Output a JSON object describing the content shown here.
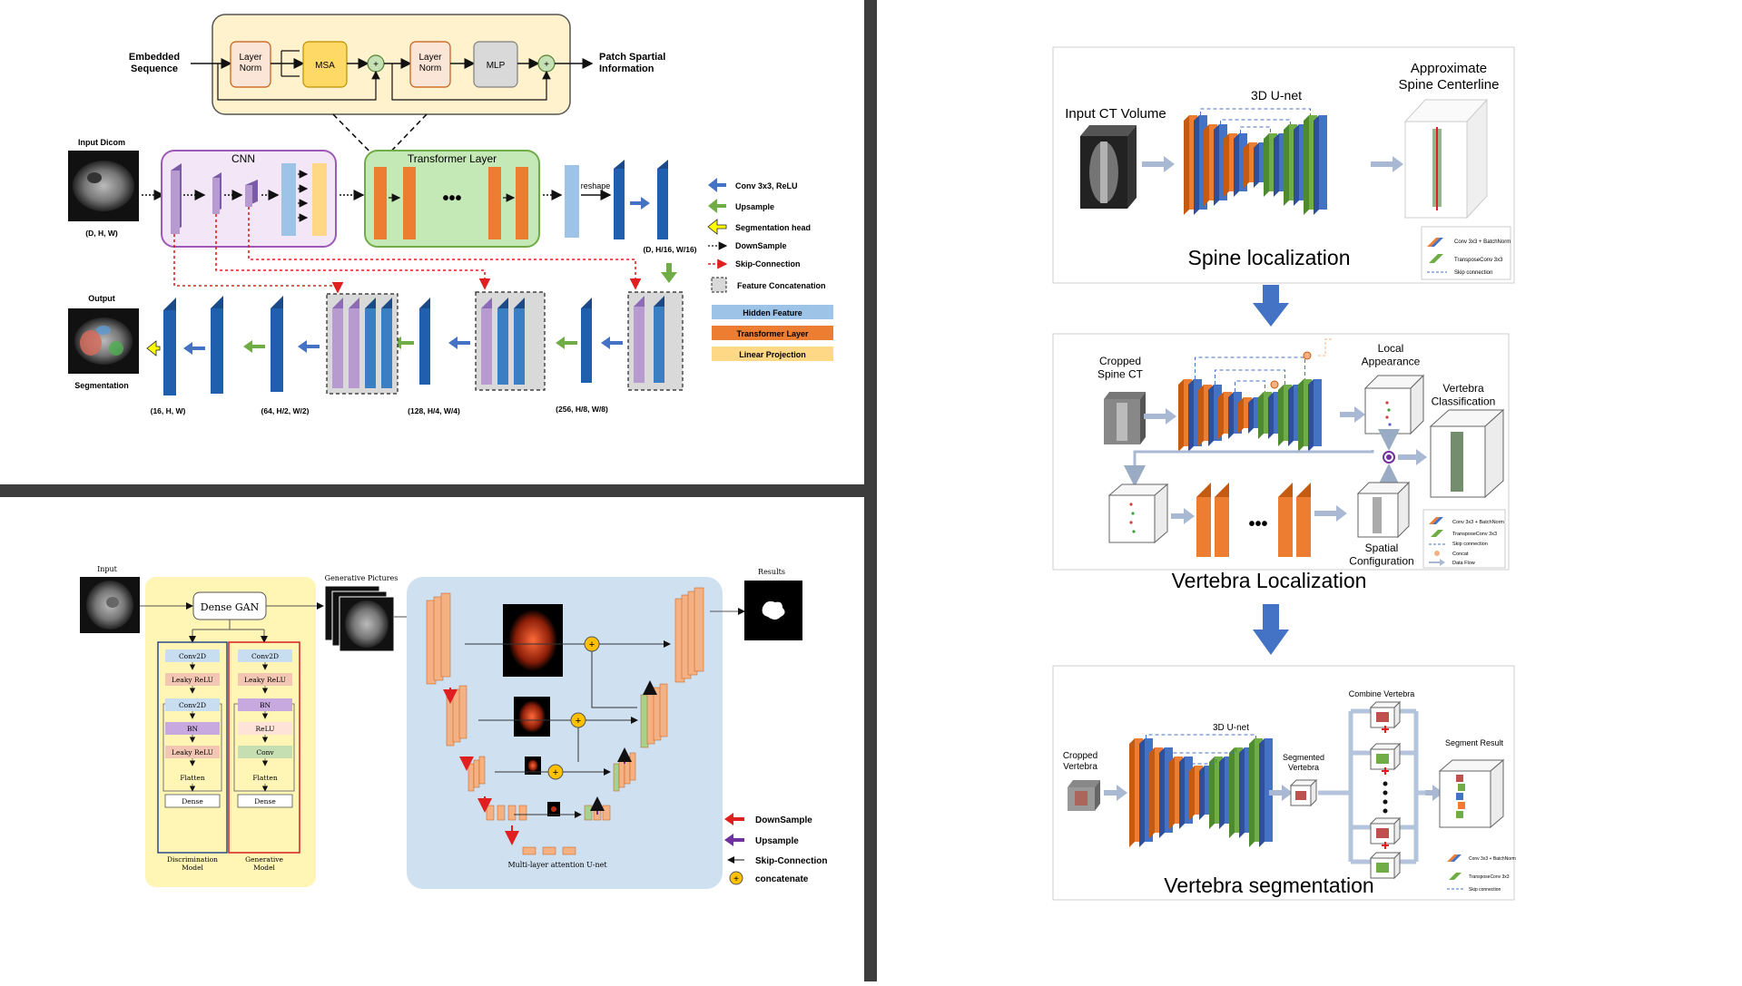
{
  "colors": {
    "divider": "#3d3d3d",
    "blue": "#1f5fae",
    "orange": "#ed7d31",
    "purple": "#b79bd0",
    "green": "#70ad47",
    "hidden_feature": "#9dc3e6",
    "linear_projection": "#ffd886",
    "salmon": "#f4b183"
  },
  "tl": {
    "embedded_sequence": "Embedded\nSequence",
    "layer_norm_1": "Layer\nNorm",
    "msa": "MSA",
    "layer_norm_2": "Layer\nNorm",
    "mlp": "MLP",
    "plus": "+",
    "patch_info": "Patch Spartial\nInformation",
    "input_dicom": "Input Dicom",
    "input_dims": "(D, H, W)",
    "cnn": "CNN",
    "transformer_layer": "Transformer Layer",
    "dots": "•••",
    "reshape": "reshape",
    "bottleneck_dims": "(D, H/16, W/16)",
    "output": "Output",
    "segmentation": "Segmentation",
    "dims": [
      "(16, H, W)",
      "(64, H/2, W/2)",
      "(128, H/4, W/4)",
      "(256, H/8, W/8)"
    ],
    "legend": {
      "conv": "Conv 3x3, ReLU",
      "upsample": "Upsample",
      "seg_head": "Segmentation head",
      "downsample": "DownSample",
      "skip": "Skip-Connection",
      "concat": "Feature Concatenation",
      "hidden": "Hidden Feature",
      "transformer": "Transformer Layer",
      "linear": "Linear Projection"
    }
  },
  "bl": {
    "input": "Input",
    "dense_gan": "Dense GAN",
    "generative_pictures": "Generative Pictures",
    "results": "Results",
    "disc": [
      "Conv2D",
      "Leaky ReLU",
      "Conv2D",
      "BN",
      "Leaky ReLU",
      "Flatten",
      "Dense"
    ],
    "gen": [
      "Conv2D",
      "Leaky ReLU",
      "BN",
      "ReLU",
      "Conv",
      "Flatten",
      "Dense"
    ],
    "disc_label": "Discrimination\nModel",
    "gen_label": "Generative\nModel",
    "unet_label": "Multi-layer attention U-net",
    "legend": {
      "downsample": "DownSample",
      "upsample": "Upsample",
      "skip": "Skip-Connection",
      "concat": "concatenate"
    }
  },
  "right": {
    "p1": {
      "input": "Input CT Volume",
      "unet": "3D U-net",
      "approx": "Approximate\nSpine Centerline",
      "title": "Spine localization",
      "legend": [
        "Conv 3x3 + BatchNorm",
        "TransposeConv 3x3",
        "Skip connection"
      ]
    },
    "p2": {
      "cropped": "Cropped\nSpine CT",
      "local": "Local\nAppearance",
      "vert_class": "Vertebra\nClassification",
      "spatial": "Spatial\nConfiguration",
      "dots": "•••",
      "title": "Vertebra Localization",
      "legend": [
        "Conv 3x3 + BatchNorm",
        "TransposeConv 3x3",
        "Skip connection",
        "Concat",
        "Data Flow"
      ]
    },
    "p3": {
      "cropped": "Cropped\nVertebra",
      "unet": "3D U-net",
      "segmented": "Segmented\nVertebra",
      "combine": "Combine Vertebra",
      "result": "Segment Result",
      "title": "Vertebra segmentation",
      "legend": [
        "Conv 3x3 + BatchNorm",
        "TransposeConv 3x3",
        "Skip connection"
      ]
    }
  }
}
